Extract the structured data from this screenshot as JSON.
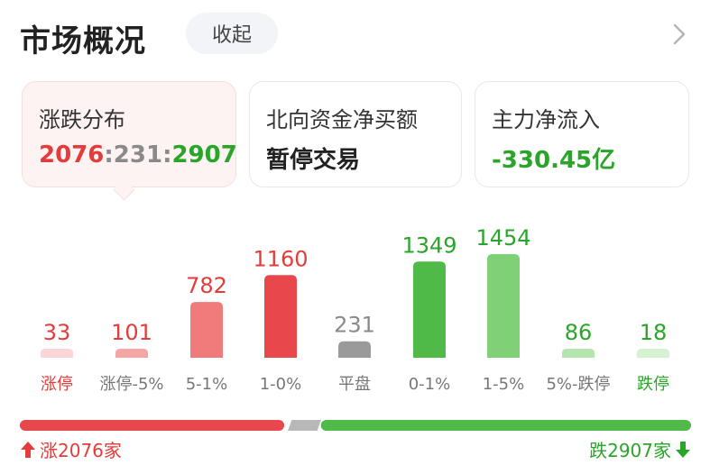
{
  "header": {
    "title": "市场概况",
    "collapse_label": "收起"
  },
  "cards": [
    {
      "label": "涨跌分布",
      "up": "2076",
      "sep1": ":",
      "flat": "231",
      "sep2": ":",
      "down": "2907"
    },
    {
      "label": "北向资金净买额",
      "value": "暂停交易"
    },
    {
      "label": "主力净流入",
      "value": "-330.45亿"
    }
  ],
  "chart_data": {
    "type": "bar",
    "categories": [
      "涨停",
      "涨停-5%",
      "5-1%",
      "1-0%",
      "平盘",
      "0-1%",
      "1-5%",
      "5%-跌停",
      "跌停"
    ],
    "values": [
      33,
      101,
      782,
      1160,
      231,
      1349,
      1454,
      86,
      18
    ],
    "colors": [
      "#fbd6d6",
      "#f6a5a5",
      "#ef7b7b",
      "#e8474b",
      "#9a9a9a",
      "#4fba48",
      "#7fd077",
      "#b4e5ae",
      "#d7f1d3"
    ],
    "label_colors": [
      "#e43b3b",
      "#e43b3b",
      "#e43b3b",
      "#e43b3b",
      "#8a8a8a",
      "#2aa52a",
      "#2aa52a",
      "#2aa52a",
      "#2aa52a"
    ],
    "cat_colors": [
      "#e43b3b",
      "#777777",
      "#777777",
      "#777777",
      "#777777",
      "#777777",
      "#777777",
      "#777777",
      "#2aa52a"
    ]
  },
  "summary": {
    "up_label": "涨2076家",
    "down_label": "跌2907家",
    "up_count": 2076,
    "flat_count": 231,
    "down_count": 2907,
    "up_color": "#e8474b",
    "flat_color": "#b8b8b8",
    "down_color": "#4fba48"
  }
}
